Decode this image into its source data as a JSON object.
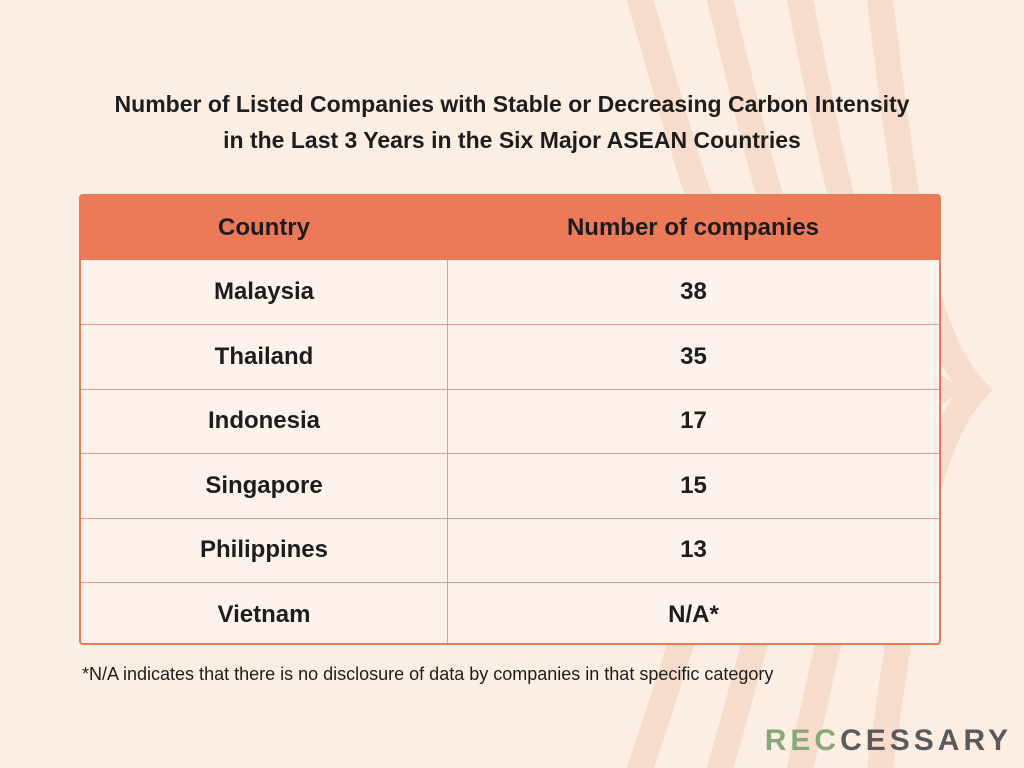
{
  "title_line1": "Number of Listed Companies with Stable or Decreasing Carbon Intensity",
  "title_line2": "in the Last 3 Years in the Six Major ASEAN Countries",
  "chart_data": {
    "type": "table",
    "title": "Number of Listed Companies with Stable or Decreasing Carbon Intensity in the Last 3 Years in the Six Major ASEAN Countries",
    "columns": [
      "Country",
      "Number of companies"
    ],
    "rows": [
      [
        "Malaysia",
        "38"
      ],
      [
        "Thailand",
        "35"
      ],
      [
        "Indonesia",
        "17"
      ],
      [
        "Singapore",
        "15"
      ],
      [
        "Philippines",
        "13"
      ],
      [
        "Vietnam",
        "N/A*"
      ]
    ]
  },
  "footnote": "*N/A indicates that there is no disclosure of data by companies in that specific category",
  "logo": {
    "part1": "REC",
    "part2": "CESSARY"
  },
  "colors": {
    "background": "#fdeee4",
    "header": "#ec7a58",
    "border": "#e97a58",
    "logo_green": "#88a87a",
    "logo_dark": "#5a5a5a"
  }
}
